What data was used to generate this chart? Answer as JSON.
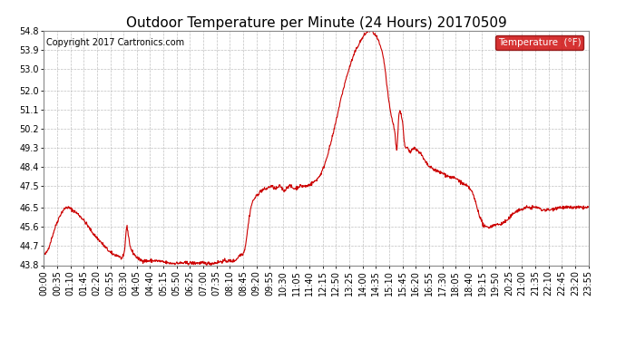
{
  "title": "Outdoor Temperature per Minute (24 Hours) 20170509",
  "copyright_text": "Copyright 2017 Cartronics.com",
  "legend_label": "Temperature  (°F)",
  "line_color": "#cc0000",
  "background_color": "#ffffff",
  "plot_bg_color": "#ffffff",
  "grid_color": "#b0b0b0",
  "ylim": [
    43.8,
    54.8
  ],
  "yticks": [
    43.8,
    44.7,
    45.6,
    46.5,
    47.5,
    48.4,
    49.3,
    50.2,
    51.1,
    52.0,
    53.0,
    53.9,
    54.8
  ],
  "xtick_labels": [
    "00:00",
    "00:35",
    "01:10",
    "01:45",
    "02:20",
    "02:55",
    "03:30",
    "04:05",
    "04:40",
    "05:15",
    "05:50",
    "06:25",
    "07:00",
    "07:35",
    "08:10",
    "08:45",
    "09:20",
    "09:55",
    "10:30",
    "11:05",
    "11:40",
    "12:15",
    "12:50",
    "13:25",
    "14:00",
    "14:35",
    "15:10",
    "15:45",
    "16:20",
    "16:55",
    "17:30",
    "18:05",
    "18:40",
    "19:15",
    "19:50",
    "20:25",
    "21:00",
    "21:35",
    "22:10",
    "22:45",
    "23:20",
    "23:55"
  ],
  "line_width": 0.8,
  "title_fontsize": 11,
  "tick_fontsize": 7,
  "copyright_fontsize": 7
}
